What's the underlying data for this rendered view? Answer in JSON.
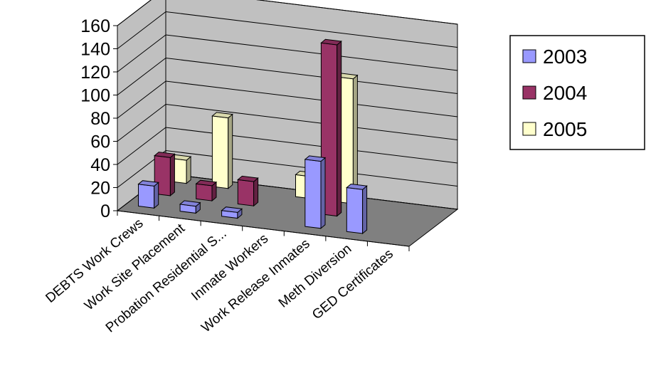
{
  "chart_data": {
    "type": "bar",
    "style": "3d-column",
    "categories": [
      "DEBTS Work Crews",
      "Work Site Placement",
      "Probation Residential S...",
      "Inmate Workers",
      "Work Release Inmates",
      "Meth Diversion",
      "GED Certificates"
    ],
    "series": [
      {
        "name": "2003",
        "values": [
          19,
          6,
          5,
          0,
          58,
          38,
          0
        ],
        "color": "#9999ff"
      },
      {
        "name": "2004",
        "values": [
          33,
          13,
          21,
          0,
          148,
          0,
          0
        ],
        "color": "#993366"
      },
      {
        "name": "2005",
        "values": [
          20,
          61,
          0,
          19,
          108,
          0,
          0
        ],
        "color": "#ffffcc"
      }
    ],
    "ylim": [
      0,
      160
    ],
    "yticks": [
      0,
      20,
      40,
      60,
      80,
      100,
      120,
      140,
      160
    ],
    "grid": true,
    "legend_position": "right"
  }
}
